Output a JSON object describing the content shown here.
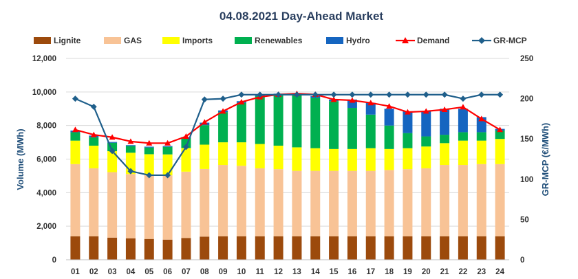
{
  "chart_data": {
    "type": "bar",
    "title": "04.08.2021  Day-Ahead Market",
    "xlabel": "",
    "ylabel": "Volume (MWh)",
    "y2label": "GR-MCP (€/MWh)",
    "ylim": [
      0,
      12000
    ],
    "y2lim": [
      0,
      250
    ],
    "yticks": [
      "0",
      "2,000",
      "4,000",
      "6,000",
      "8,000",
      "10,000",
      "12,000"
    ],
    "y2ticks": [
      "0",
      "50",
      "100",
      "150",
      "200",
      "250"
    ],
    "categories": [
      "01",
      "02",
      "03",
      "04",
      "05",
      "06",
      "07",
      "08",
      "09",
      "10",
      "11",
      "12",
      "13",
      "14",
      "15",
      "16",
      "17",
      "18",
      "19",
      "20",
      "21",
      "22",
      "23",
      "24"
    ],
    "series": [
      {
        "name": "Lignite",
        "kind": "bar",
        "color": "#9c4a0c",
        "values": [
          1400,
          1400,
          1320,
          1280,
          1240,
          1200,
          1300,
          1380,
          1400,
          1400,
          1400,
          1400,
          1400,
          1400,
          1400,
          1400,
          1400,
          1400,
          1400,
          1400,
          1400,
          1400,
          1400,
          1400
        ]
      },
      {
        "name": "GAS",
        "kind": "bar",
        "color": "#f8c396",
        "values": [
          4300,
          4050,
          3900,
          3830,
          3800,
          3830,
          3950,
          4030,
          4250,
          4200,
          4050,
          4000,
          3900,
          3900,
          3900,
          3900,
          3900,
          3950,
          4000,
          4050,
          4250,
          4250,
          4300,
          4300
        ]
      },
      {
        "name": "Imports",
        "kind": "bar",
        "color": "#ffff00",
        "values": [
          1400,
          1350,
          1250,
          1270,
          1250,
          1250,
          1410,
          1450,
          1350,
          1400,
          1450,
          1400,
          1400,
          1350,
          1300,
          1300,
          1350,
          1250,
          1250,
          1300,
          1300,
          1450,
          1400,
          1500
        ]
      },
      {
        "name": "Renewables",
        "kind": "bar",
        "color": "#00b050",
        "values": [
          500,
          500,
          500,
          400,
          400,
          450,
          600,
          1160,
          1800,
          2350,
          2850,
          3000,
          3100,
          3000,
          2850,
          2450,
          2000,
          1400,
          900,
          600,
          500,
          500,
          500,
          500
        ]
      },
      {
        "name": "Hydro",
        "kind": "bar",
        "color": "#1565c0",
        "values": [
          100,
          100,
          50,
          50,
          50,
          50,
          50,
          150,
          100,
          100,
          100,
          100,
          100,
          100,
          100,
          500,
          700,
          1000,
          1300,
          1500,
          1550,
          1400,
          900,
          100
        ]
      },
      {
        "name": "Demand",
        "kind": "line",
        "color": "#ff0000",
        "marker": "triangle",
        "values": [
          7750,
          7450,
          7300,
          7050,
          6950,
          6950,
          7350,
          8200,
          8850,
          9400,
          9700,
          9850,
          9900,
          9850,
          9550,
          9500,
          9350,
          9150,
          8800,
          8850,
          8950,
          9100,
          8400,
          7750
        ]
      },
      {
        "name": "GR-MCP",
        "kind": "line",
        "axis": "right",
        "color": "#1f5f8b",
        "marker": "diamond",
        "values": [
          200,
          190,
          135,
          110,
          105,
          105,
          140,
          199,
          200,
          205,
          205,
          205,
          205,
          205,
          205,
          205,
          205,
          205,
          205,
          205,
          205,
          200,
          205,
          205
        ]
      }
    ]
  }
}
